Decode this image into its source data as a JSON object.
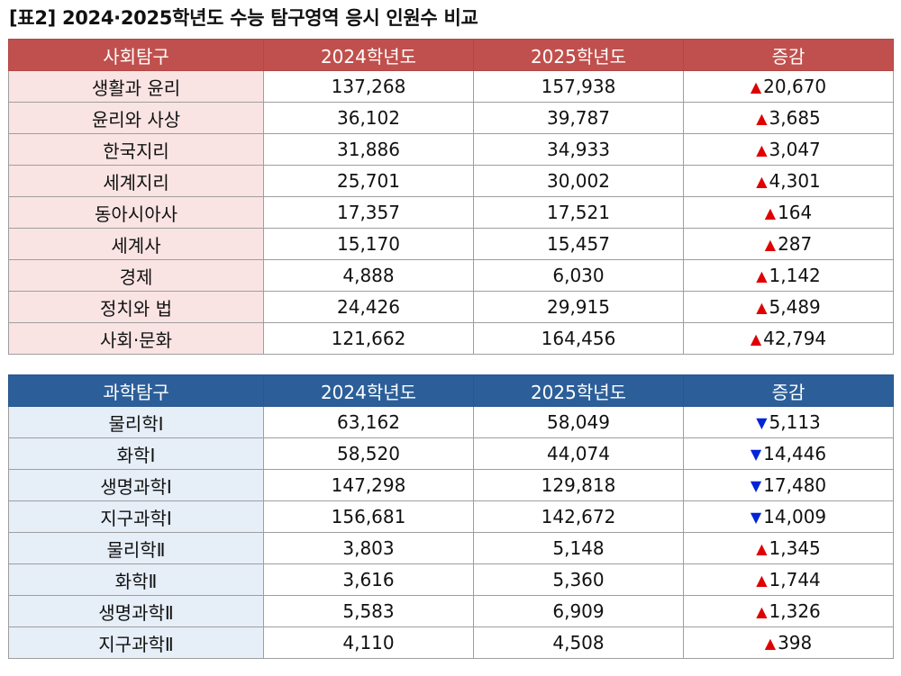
{
  "title": "[표2] 2024·2025학년도 수능 탐구영역 응시 인원수 비교",
  "colors": {
    "up": "#e00000",
    "down": "#0024d8",
    "social_header": "#c0504d",
    "science_header": "#2c5f99"
  },
  "social": {
    "headers": [
      "사회탐구",
      "2024학년도",
      "2025학년도",
      "증감"
    ],
    "rows": [
      {
        "subject": "생활과 윤리",
        "y2024": "137,268",
        "y2025": "157,938",
        "dir": "up",
        "arrow": "▲",
        "change": "20,670"
      },
      {
        "subject": "윤리와 사상",
        "y2024": "36,102",
        "y2025": "39,787",
        "dir": "up",
        "arrow": "▲",
        "change": "3,685"
      },
      {
        "subject": "한국지리",
        "y2024": "31,886",
        "y2025": "34,933",
        "dir": "up",
        "arrow": "▲",
        "change": "3,047"
      },
      {
        "subject": "세계지리",
        "y2024": "25,701",
        "y2025": "30,002",
        "dir": "up",
        "arrow": "▲",
        "change": "4,301"
      },
      {
        "subject": "동아시아사",
        "y2024": "17,357",
        "y2025": "17,521",
        "dir": "up",
        "arrow": "▲",
        "change": "164"
      },
      {
        "subject": "세계사",
        "y2024": "15,170",
        "y2025": "15,457",
        "dir": "up",
        "arrow": "▲",
        "change": "287"
      },
      {
        "subject": "경제",
        "y2024": "4,888",
        "y2025": "6,030",
        "dir": "up",
        "arrow": "▲",
        "change": "1,142"
      },
      {
        "subject": "정치와 법",
        "y2024": "24,426",
        "y2025": "29,915",
        "dir": "up",
        "arrow": "▲",
        "change": "5,489"
      },
      {
        "subject": "사회·문화",
        "y2024": "121,662",
        "y2025": "164,456",
        "dir": "up",
        "arrow": "▲",
        "change": "42,794"
      }
    ]
  },
  "science": {
    "headers": [
      "과학탐구",
      "2024학년도",
      "2025학년도",
      "증감"
    ],
    "rows": [
      {
        "subject": "물리학Ⅰ",
        "y2024": "63,162",
        "y2025": "58,049",
        "dir": "down",
        "arrow": "▼",
        "change": "5,113"
      },
      {
        "subject": "화학Ⅰ",
        "y2024": "58,520",
        "y2025": "44,074",
        "dir": "down",
        "arrow": "▼",
        "change": "14,446"
      },
      {
        "subject": "생명과학Ⅰ",
        "y2024": "147,298",
        "y2025": "129,818",
        "dir": "down",
        "arrow": "▼",
        "change": "17,480"
      },
      {
        "subject": "지구과학Ⅰ",
        "y2024": "156,681",
        "y2025": "142,672",
        "dir": "down",
        "arrow": "▼",
        "change": "14,009"
      },
      {
        "subject": "물리학Ⅱ",
        "y2024": "3,803",
        "y2025": "5,148",
        "dir": "up",
        "arrow": "▲",
        "change": "1,345"
      },
      {
        "subject": "화학Ⅱ",
        "y2024": "3,616",
        "y2025": "5,360",
        "dir": "up",
        "arrow": "▲",
        "change": "1,744"
      },
      {
        "subject": "생명과학Ⅱ",
        "y2024": "5,583",
        "y2025": "6,909",
        "dir": "up",
        "arrow": "▲",
        "change": "1,326"
      },
      {
        "subject": "지구과학Ⅱ",
        "y2024": "4,110",
        "y2025": "4,508",
        "dir": "up",
        "arrow": "▲",
        "change": "398"
      }
    ]
  }
}
